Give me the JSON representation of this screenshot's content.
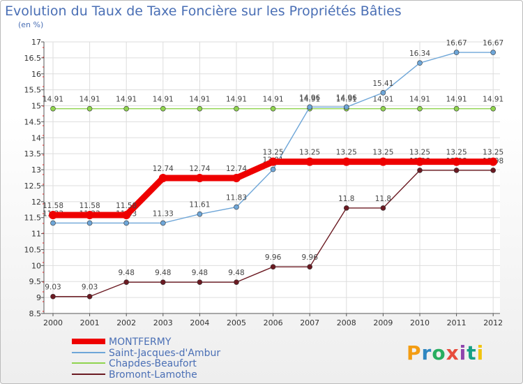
{
  "chart_data": {
    "type": "line",
    "title": "Evolution du Taux de Taxe Foncière sur les Propriétés Bâties",
    "unit_label": "(en %)",
    "x": [
      "2000",
      "2001",
      "2002",
      "2003",
      "2004",
      "2005",
      "2006",
      "2007",
      "2008",
      "2009",
      "2010",
      "2011",
      "2012"
    ],
    "ylim": [
      8.5,
      17
    ],
    "yticks": [
      "8.5",
      "9",
      "9.5",
      "10",
      "10.5",
      "11",
      "11.5",
      "12",
      "12.5",
      "13",
      "13.5",
      "14",
      "14.5",
      "15",
      "15.5",
      "16",
      "16.5",
      "17"
    ],
    "series": [
      {
        "name": "Bromont-Lamothe",
        "color": "#6b1a22",
        "labels": [
          "9.03",
          "9.03",
          "9.48",
          "9.48",
          "9.48",
          "9.48",
          "9.96",
          "9.96",
          "11.8",
          "11.8",
          "12.98",
          "12.98",
          "12.98"
        ],
        "values": [
          9.03,
          9.03,
          9.48,
          9.48,
          9.48,
          9.48,
          9.96,
          9.96,
          11.8,
          11.8,
          12.98,
          12.98,
          12.98
        ]
      },
      {
        "name": "Chapdes-Beaufort",
        "color": "#8fd44e",
        "labels": [
          "14.91",
          "14.91",
          "14.91",
          "14.91",
          "14.91",
          "14.91",
          "14.91",
          "14.91",
          "14.91",
          "14.91",
          "14.91",
          "14.91",
          "14.91"
        ],
        "values": [
          14.91,
          14.91,
          14.91,
          14.91,
          14.91,
          14.91,
          14.91,
          14.91,
          14.91,
          14.91,
          14.91,
          14.91,
          14.91
        ]
      },
      {
        "name": "Saint-Jacques-d'Ambur",
        "color": "#6ea6d8",
        "labels": [
          "11.33",
          "11.33",
          "11.33",
          "11.33",
          "11.61",
          "11.83",
          "13.01",
          "14.96",
          "14.96",
          "15.41",
          "16.34",
          "16.67",
          "16.67"
        ],
        "values": [
          11.33,
          11.33,
          11.33,
          11.33,
          11.61,
          11.83,
          13.01,
          14.96,
          14.96,
          15.41,
          16.34,
          16.67,
          16.67
        ]
      },
      {
        "name": "MONTFERMY",
        "color": "#ee0000",
        "labels": [
          "11.58",
          "11.58",
          "11.58",
          "12.74",
          "12.74",
          "12.74",
          "13.25",
          "13.25",
          "13.25",
          "13.25",
          "13.25",
          "13.25",
          "13.25"
        ],
        "values": [
          11.58,
          11.58,
          11.58,
          12.74,
          12.74,
          12.74,
          13.25,
          13.25,
          13.25,
          13.25,
          13.25,
          13.25,
          13.25
        ]
      }
    ],
    "legend": [
      "MONTFERMY",
      "Saint-Jacques-d'Ambur",
      "Chapdes-Beaufort",
      "Bromont-Lamothe"
    ],
    "legend_position": "bottom-left",
    "grid": true
  },
  "brand": "Proxiti"
}
